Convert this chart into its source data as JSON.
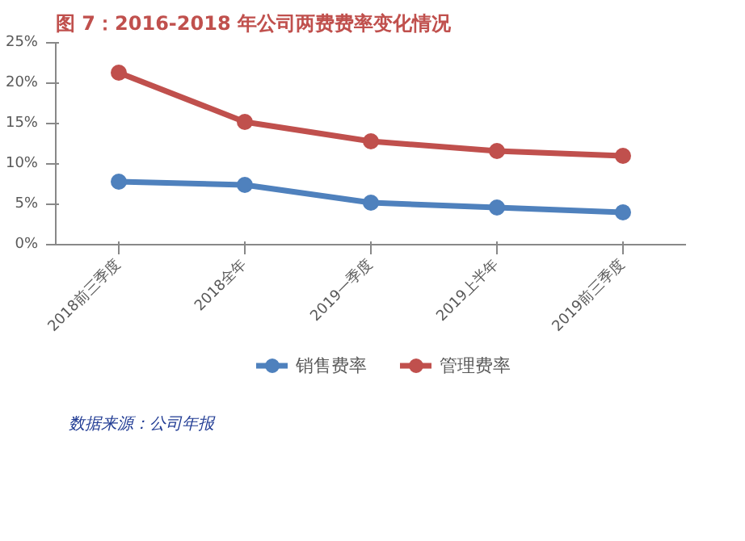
{
  "chart_data": {
    "type": "line",
    "title": "图 7：2016-2018 年公司两费费率变化情况",
    "categories": [
      "2018前三季度",
      "2018全年",
      "2019一季度",
      "2019上半年",
      "2019前三季度"
    ],
    "series": [
      {
        "name": "销售费率",
        "color": "#4f81bd",
        "values": [
          7.8,
          7.4,
          5.2,
          4.6,
          4.0
        ]
      },
      {
        "name": "管理费率",
        "color": "#c0504d",
        "values": [
          21.3,
          15.2,
          12.8,
          11.6,
          11.0
        ]
      }
    ],
    "ylim": [
      0,
      25
    ],
    "yticks": [
      {
        "value": 0,
        "label": "0%"
      },
      {
        "value": 5,
        "label": "5%"
      },
      {
        "value": 10,
        "label": "10%"
      },
      {
        "value": 15,
        "label": "15%"
      },
      {
        "value": 20,
        "label": "20%"
      },
      {
        "value": 25,
        "label": "25%"
      }
    ],
    "grid": false,
    "legend": "bottom",
    "marker": "circle",
    "line_style": "solid",
    "annotations": [
      "数据来源：公司年报"
    ]
  }
}
